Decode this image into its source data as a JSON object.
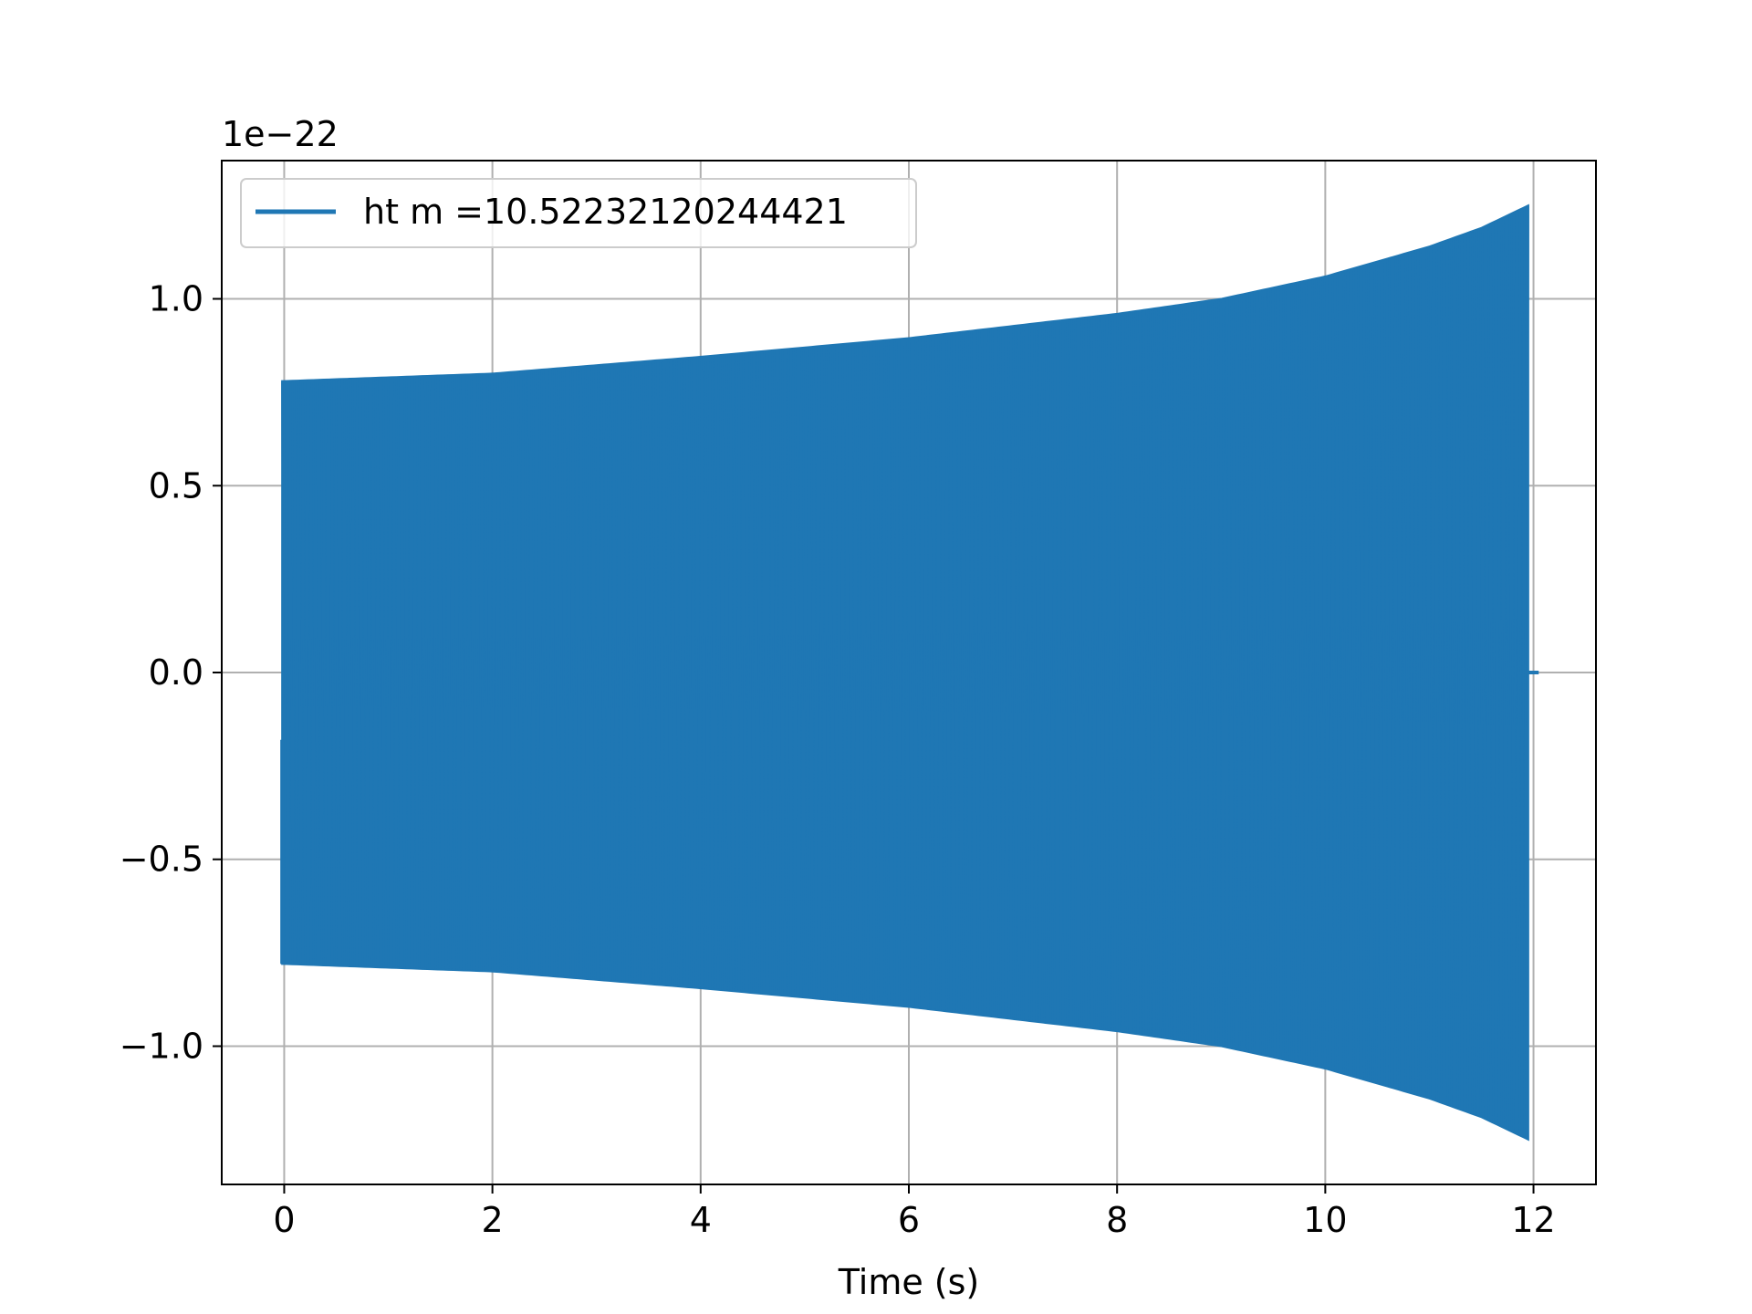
{
  "chart_data": {
    "type": "line",
    "title": "",
    "xlabel": "Time (s)",
    "ylabel": "",
    "y_offset_label": "1e−22",
    "xlim": [
      -0.6,
      12.6
    ],
    "ylim": [
      -1.37,
      1.37
    ],
    "x_ticks": [
      0,
      2,
      4,
      6,
      8,
      10,
      12
    ],
    "x_tick_labels": [
      "0",
      "2",
      "4",
      "6",
      "8",
      "10",
      "12"
    ],
    "y_ticks": [
      -1.0,
      -0.5,
      0.0,
      0.5,
      1.0
    ],
    "y_tick_labels": [
      "−1.0",
      "−0.5",
      "0.0",
      "0.5",
      "1.0"
    ],
    "grid": true,
    "legend_position": "top-left",
    "series": [
      {
        "name": "ht m =10.52232120244421",
        "color": "#1f77b4",
        "signal_start": -0.02,
        "signal_end": 11.95,
        "padding_end": 12.05,
        "envelope": [
          {
            "t": 0.0,
            "amp": 0.78
          },
          {
            "t": 2.0,
            "amp": 0.8
          },
          {
            "t": 4.0,
            "amp": 0.845
          },
          {
            "t": 6.0,
            "amp": 0.895
          },
          {
            "t": 8.0,
            "amp": 0.96
          },
          {
            "t": 9.0,
            "amp": 1.0
          },
          {
            "t": 10.0,
            "amp": 1.06
          },
          {
            "t": 11.0,
            "amp": 1.14
          },
          {
            "t": 11.5,
            "amp": 1.19
          },
          {
            "t": 11.95,
            "amp": 1.25
          }
        ]
      }
    ]
  }
}
